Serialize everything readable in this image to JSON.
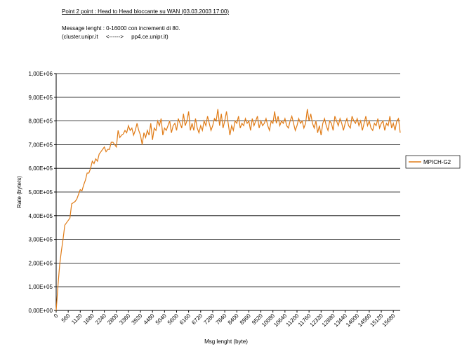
{
  "chart_data": {
    "type": "line",
    "title": "Point 2 point : Head to Head bloccante su WAN (03.03.2003 17:00)",
    "subtitle": "Message lenght :  0-16000 con incrementi di 80.",
    "subtitle2": "(cluster.unipr.it     <------>     pp4.ce.unipr.it)",
    "x_label": "Msg lenght (byte)",
    "y_label": "Rate (byte/s)",
    "xlim": [
      0,
      16000
    ],
    "xticks": [
      0,
      560,
      1120,
      1680,
      2240,
      2800,
      3360,
      3920,
      4480,
      5040,
      5600,
      6160,
      6720,
      7280,
      7840,
      8400,
      8960,
      9520,
      10080,
      10640,
      11200,
      11760,
      12320,
      12880,
      13440,
      14000,
      14560,
      15120,
      15680
    ],
    "ylim": [
      0,
      1000000
    ],
    "yticks": [
      {
        "value": 0,
        "label": "0,00E+00"
      },
      {
        "value": 100000,
        "label": "1,00E+05"
      },
      {
        "value": 200000,
        "label": "2,00E+05"
      },
      {
        "value": 300000,
        "label": "3,00E+05"
      },
      {
        "value": 400000,
        "label": "4,00E+05"
      },
      {
        "value": 500000,
        "label": "5,00E+05"
      },
      {
        "value": 600000,
        "label": "6,00E+05"
      },
      {
        "value": 700000,
        "label": "7,00E+05"
      },
      {
        "value": 800000,
        "label": "8,00E+05"
      },
      {
        "value": 900000,
        "label": "9,00E+05"
      },
      {
        "value": 1000000,
        "label": "1,00E+06"
      }
    ],
    "grid": true,
    "legend": "right",
    "series": [
      {
        "name": "MPICH-G2",
        "color": "#e07b16",
        "values": [
          0,
          100000,
          190000,
          250000,
          300000,
          360000,
          370000,
          380000,
          390000,
          450000,
          455000,
          460000,
          470000,
          490000,
          510000,
          505000,
          530000,
          550000,
          580000,
          580000,
          600000,
          630000,
          620000,
          640000,
          630000,
          660000,
          670000,
          680000,
          690000,
          670000,
          680000,
          680000,
          710000,
          710000,
          700000,
          690000,
          760000,
          730000,
          740000,
          745000,
          760000,
          750000,
          780000,
          760000,
          770000,
          740000,
          760000,
          790000,
          760000,
          740000,
          700000,
          750000,
          730000,
          760000,
          740000,
          790000,
          720000,
          770000,
          760000,
          800000,
          780000,
          810000,
          740000,
          770000,
          760000,
          780000,
          800000,
          750000,
          780000,
          790000,
          760000,
          810000,
          790000,
          770000,
          830000,
          780000,
          800000,
          840000,
          760000,
          790000,
          760000,
          810000,
          770000,
          750000,
          780000,
          760000,
          800000,
          780000,
          820000,
          790000,
          760000,
          780000,
          810000,
          800000,
          850000,
          780000,
          830000,
          770000,
          800000,
          840000,
          790000,
          740000,
          780000,
          760000,
          800000,
          790000,
          820000,
          770000,
          790000,
          780000,
          810000,
          790000,
          800000,
          760000,
          810000,
          780000,
          800000,
          820000,
          770000,
          800000,
          780000,
          790000,
          810000,
          780000,
          760000,
          800000,
          790000,
          840000,
          790000,
          820000,
          780000,
          800000,
          790000,
          810000,
          780000,
          770000,
          800000,
          820000,
          790000,
          760000,
          780000,
          810000,
          790000,
          800000,
          770000,
          790000,
          850000,
          800000,
          830000,
          790000,
          770000,
          800000,
          750000,
          780000,
          740000,
          790000,
          810000,
          780000,
          760000,
          800000,
          790000,
          760000,
          820000,
          800000,
          780000,
          810000,
          790000,
          760000,
          790000,
          810000,
          780000,
          770000,
          820000,
          800000,
          790000,
          810000,
          780000,
          800000,
          760000,
          790000,
          820000,
          780000,
          800000,
          770000,
          760000,
          790000,
          780000,
          810000,
          770000,
          790000,
          800000,
          760000,
          790000,
          780000,
          820000,
          770000,
          790000,
          760000,
          800000,
          810000,
          750000
        ]
      }
    ]
  }
}
